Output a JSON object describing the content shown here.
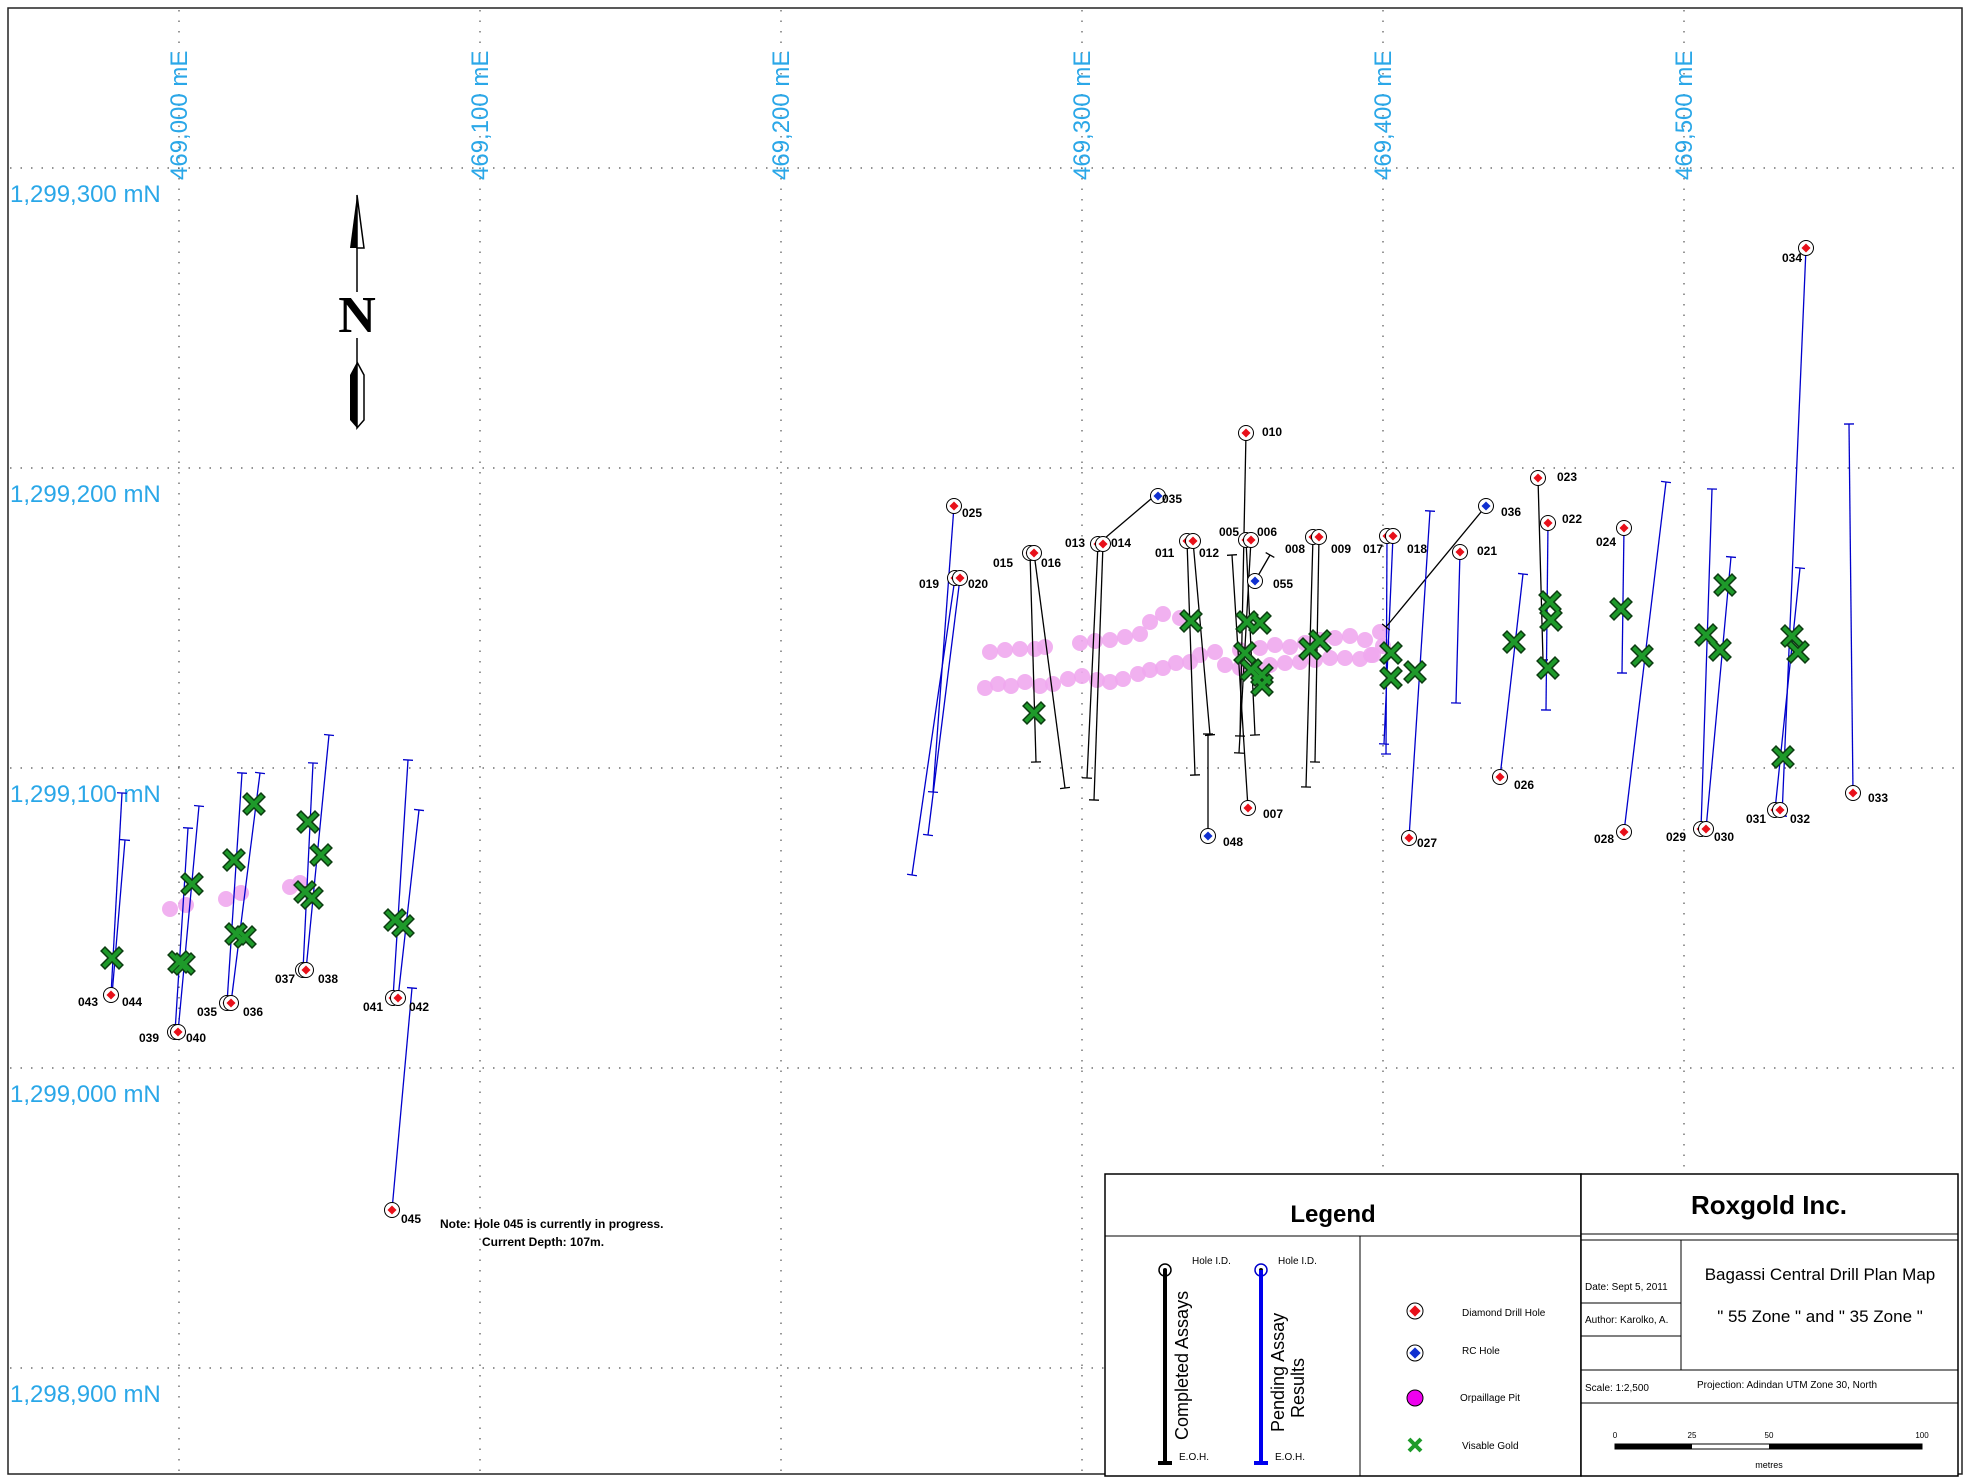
{
  "map": {
    "easting_labels": [
      "469,000 mE",
      "469,100 mE",
      "469,200 mE",
      "469,300 mE",
      "469,400 mE",
      "469,500 mE"
    ],
    "northing_labels": [
      "1,299,300 mN",
      "1,299,200 mN",
      "1,299,100 mN",
      "1,299,000 mN",
      "1,298,900 mN"
    ],
    "north_arrow_label": "N",
    "colors": {
      "grid_label": "#2aa7e8",
      "completed_trace": "#000000",
      "pending_trace": "#0000cc",
      "diamond_marker": "#e8101a",
      "rc_marker": "#1030d0",
      "orpaillage_pit": "#f0a8ee",
      "visible_gold": "#1e9a2a"
    },
    "holes": [
      {
        "id": "043",
        "type": "diamond",
        "status": "pending"
      },
      {
        "id": "044",
        "type": "diamond",
        "status": "pending"
      },
      {
        "id": "039",
        "type": "diamond",
        "status": "pending"
      },
      {
        "id": "040",
        "type": "diamond",
        "status": "pending"
      },
      {
        "id": "035",
        "type": "diamond",
        "status": "pending"
      },
      {
        "id": "036",
        "type": "diamond",
        "status": "pending"
      },
      {
        "id": "037",
        "type": "diamond",
        "status": "pending"
      },
      {
        "id": "038",
        "type": "diamond",
        "status": "pending"
      },
      {
        "id": "041",
        "type": "diamond",
        "status": "pending"
      },
      {
        "id": "042",
        "type": "diamond",
        "status": "pending"
      },
      {
        "id": "045",
        "type": "diamond",
        "status": "pending"
      },
      {
        "id": "025",
        "type": "diamond",
        "status": "pending"
      },
      {
        "id": "019",
        "type": "diamond",
        "status": "pending"
      },
      {
        "id": "020",
        "type": "diamond",
        "status": "pending"
      },
      {
        "id": "015",
        "type": "diamond",
        "status": "completed"
      },
      {
        "id": "016",
        "type": "diamond",
        "status": "completed"
      },
      {
        "id": "013",
        "type": "diamond",
        "status": "completed"
      },
      {
        "id": "014",
        "type": "diamond",
        "status": "completed"
      },
      {
        "id": "035",
        "type": "rc",
        "status": "completed"
      },
      {
        "id": "011",
        "type": "diamond",
        "status": "completed"
      },
      {
        "id": "012",
        "type": "diamond",
        "status": "completed"
      },
      {
        "id": "010",
        "type": "diamond",
        "status": "completed"
      },
      {
        "id": "005",
        "type": "diamond",
        "status": "completed"
      },
      {
        "id": "006",
        "type": "diamond",
        "status": "completed"
      },
      {
        "id": "055",
        "type": "rc",
        "status": "completed"
      },
      {
        "id": "008",
        "type": "diamond",
        "status": "completed"
      },
      {
        "id": "009",
        "type": "diamond",
        "status": "completed"
      },
      {
        "id": "007",
        "type": "diamond",
        "status": "completed"
      },
      {
        "id": "048",
        "type": "rc",
        "status": "completed"
      },
      {
        "id": "017",
        "type": "diamond",
        "status": "pending"
      },
      {
        "id": "018",
        "type": "diamond",
        "status": "pending"
      },
      {
        "id": "036",
        "type": "rc",
        "status": "completed"
      },
      {
        "id": "021",
        "type": "diamond",
        "status": "pending"
      },
      {
        "id": "027",
        "type": "diamond",
        "status": "pending"
      },
      {
        "id": "023",
        "type": "diamond",
        "status": "completed"
      },
      {
        "id": "022",
        "type": "diamond",
        "status": "pending"
      },
      {
        "id": "026",
        "type": "diamond",
        "status": "pending"
      },
      {
        "id": "024",
        "type": "diamond",
        "status": "pending"
      },
      {
        "id": "028",
        "type": "diamond",
        "status": "pending"
      },
      {
        "id": "029",
        "type": "diamond",
        "status": "pending"
      },
      {
        "id": "030",
        "type": "diamond",
        "status": "pending"
      },
      {
        "id": "034",
        "type": "diamond",
        "status": "pending"
      },
      {
        "id": "031",
        "type": "diamond",
        "status": "pending"
      },
      {
        "id": "032",
        "type": "diamond",
        "status": "pending"
      },
      {
        "id": "033",
        "type": "diamond",
        "status": "pending"
      }
    ],
    "note": {
      "line1": "Note: Hole 045 is currently in progress.",
      "line2": "Current Depth: 107m."
    }
  },
  "legend": {
    "title": "Legend",
    "completed": {
      "top": "Hole I.D.",
      "label": "Completed Assays",
      "bottom": "E.O.H."
    },
    "pending": {
      "top": "Hole I.D.",
      "label_line1": "Pending Assay",
      "label_line2": "Results",
      "bottom": "E.O.H."
    },
    "symbols": [
      {
        "icon": "diamond-drill-hole-icon",
        "label": "Diamond Drill Hole"
      },
      {
        "icon": "rc-hole-icon",
        "label": "RC Hole"
      },
      {
        "icon": "orpaillage-pit-icon",
        "label": "Orpaillage Pit"
      },
      {
        "icon": "visible-gold-icon",
        "label": "Visable Gold"
      }
    ]
  },
  "title_block": {
    "company": "Roxgold Inc.",
    "date": "Date: Sept 5, 2011",
    "author": "Author: Karolko, A.",
    "title": "Bagassi Central Drill Plan Map",
    "subtitle": "\" 55 Zone \" and \" 35 Zone \"",
    "scale": "Scale: 1:2,500",
    "projection": "Projection: Adindan UTM Zone 30, North",
    "scalebar": {
      "ticks": [
        "0",
        "25",
        "50",
        "100"
      ],
      "unit": "metres"
    }
  }
}
